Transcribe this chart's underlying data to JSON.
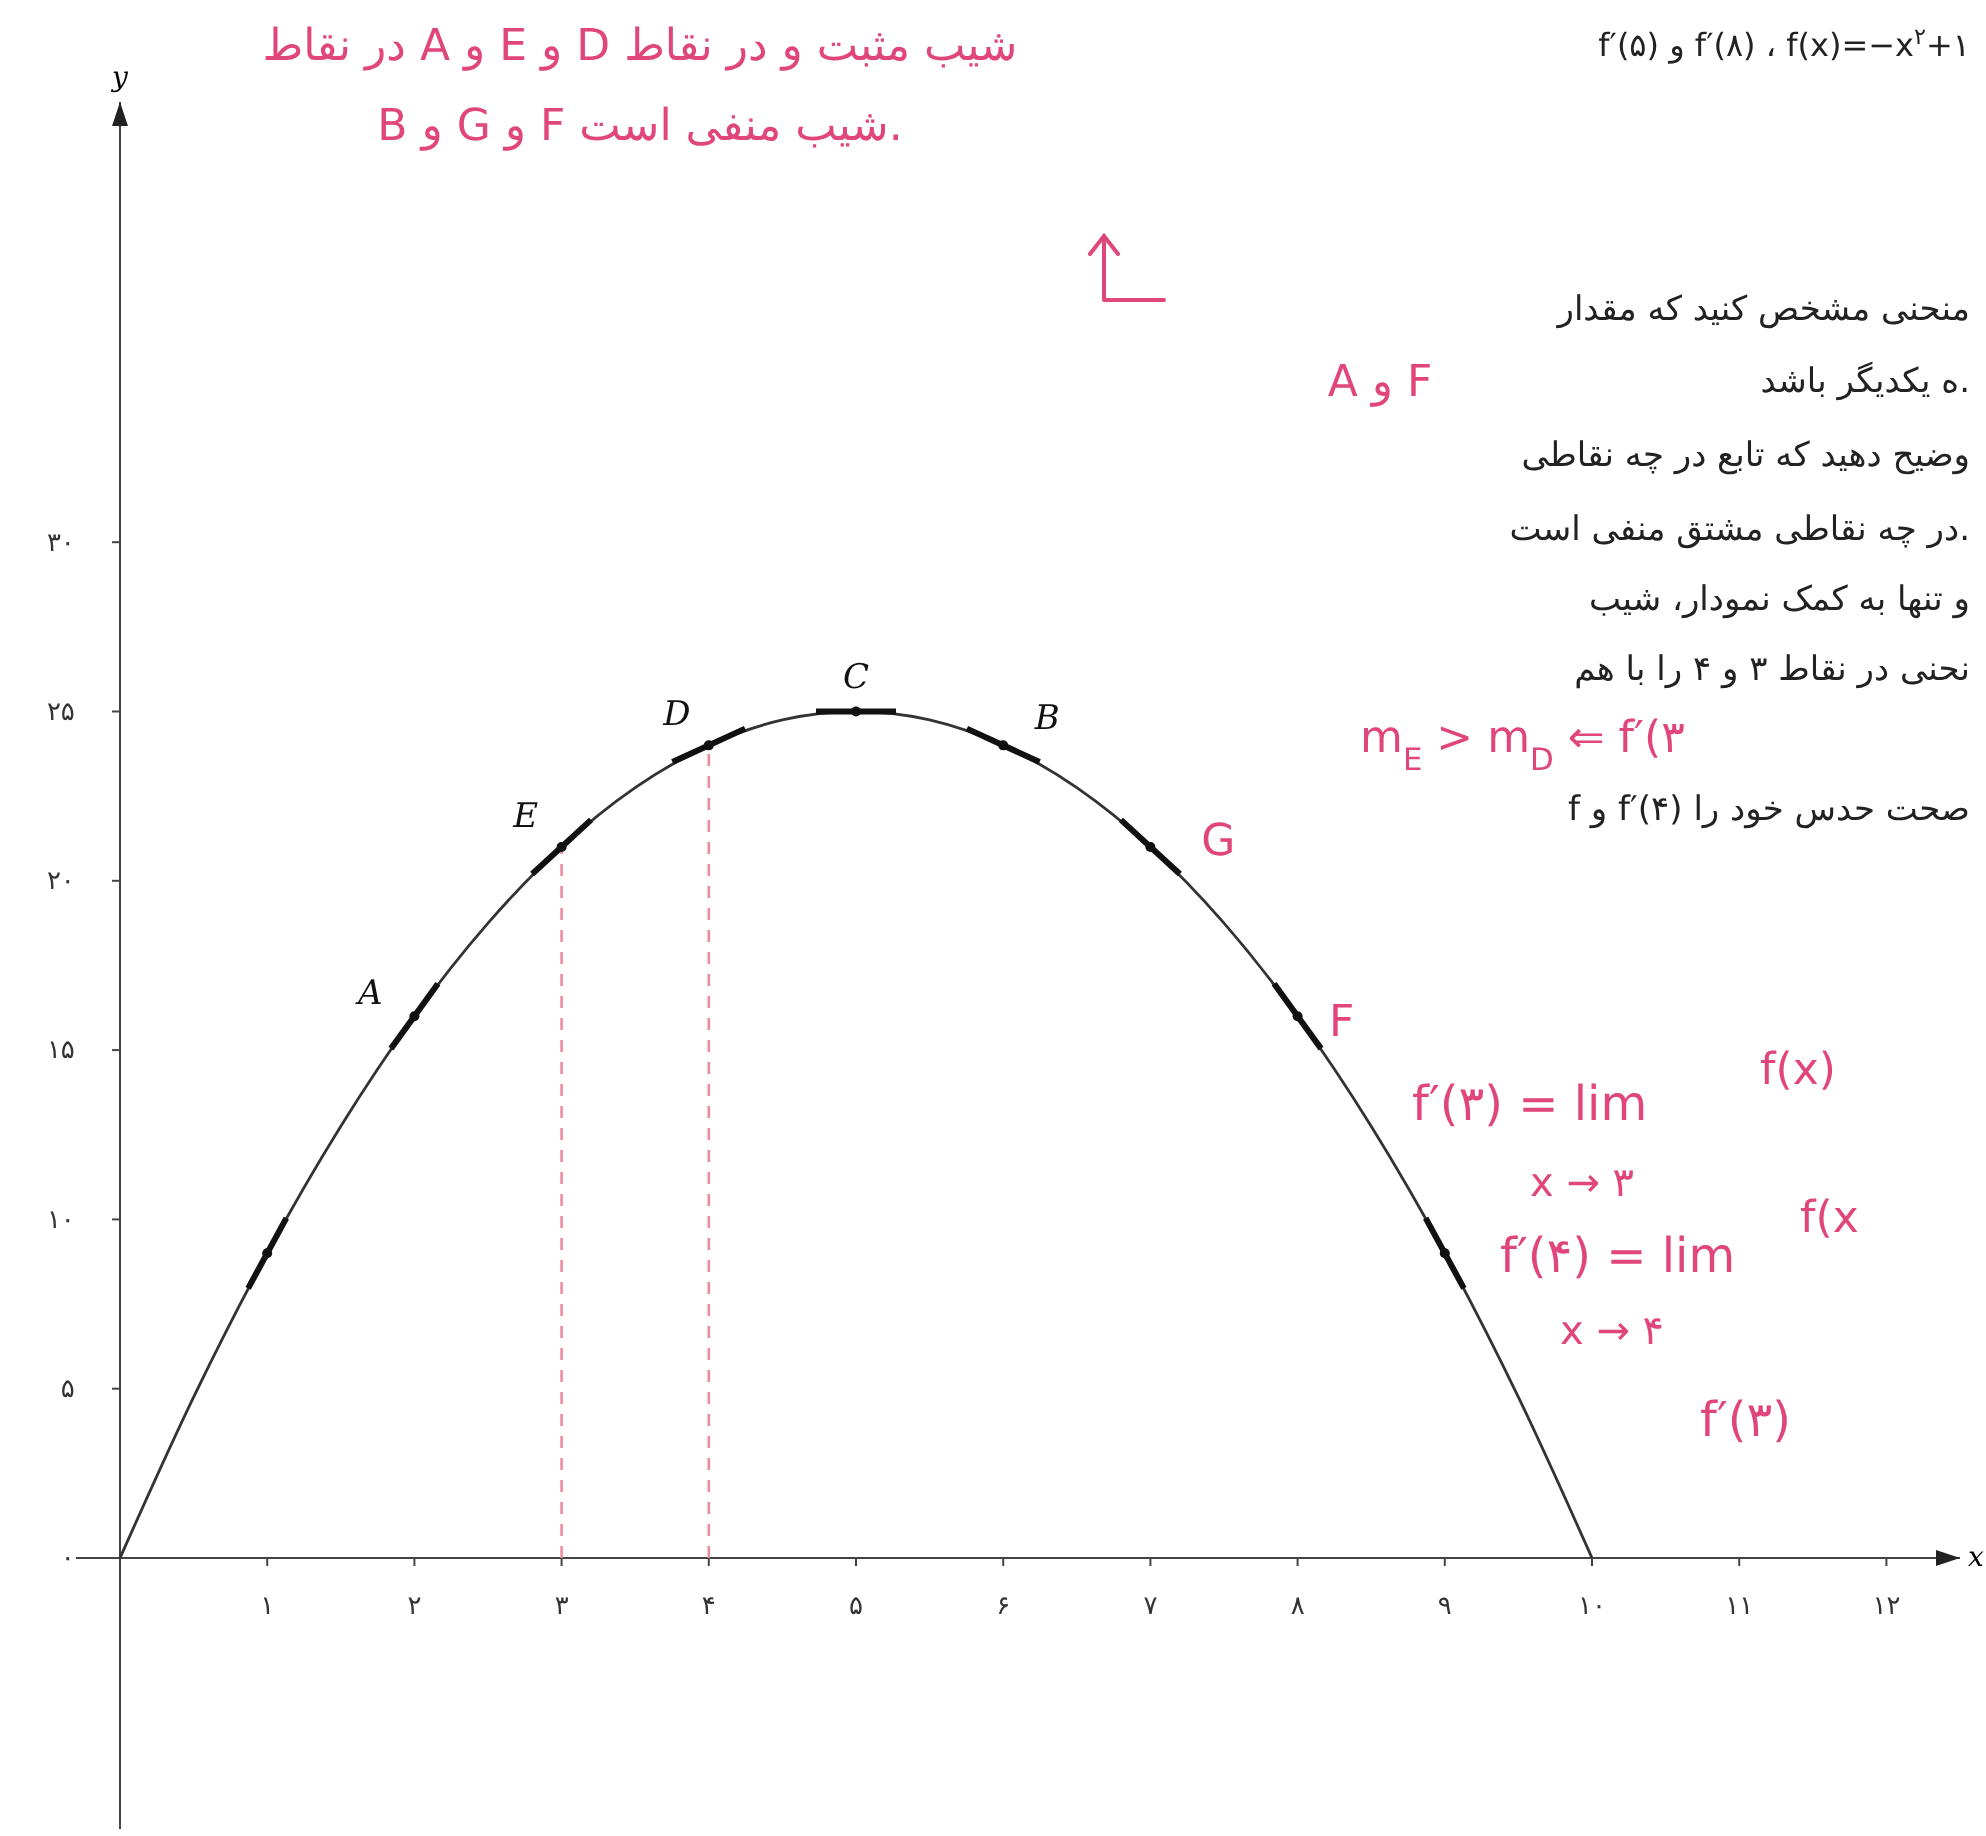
{
  "chart_data": {
    "type": "line",
    "xlabel": "x",
    "ylabel": "y",
    "xlim": [
      -0.3,
      12.5
    ],
    "ylim": [
      -8,
      43
    ],
    "xticks": [
      {
        "value": 1,
        "label": "۱"
      },
      {
        "value": 2,
        "label": "۲"
      },
      {
        "value": 3,
        "label": "۳"
      },
      {
        "value": 4,
        "label": "۴"
      },
      {
        "value": 5,
        "label": "۵"
      },
      {
        "value": 6,
        "label": "۶"
      },
      {
        "value": 7,
        "label": "۷"
      },
      {
        "value": 8,
        "label": "۸"
      },
      {
        "value": 9,
        "label": "۹"
      },
      {
        "value": 10,
        "label": "۱۰"
      },
      {
        "value": 11,
        "label": "۱۱"
      },
      {
        "value": 12,
        "label": "۱۲"
      }
    ],
    "yticks": [
      {
        "value": 0,
        "label": "۰"
      },
      {
        "value": 5,
        "label": "۵"
      },
      {
        "value": 10,
        "label": "۱۰"
      },
      {
        "value": 15,
        "label": "۱۵"
      },
      {
        "value": 20,
        "label": "۲۰"
      },
      {
        "value": 25,
        "label": "۲۵"
      },
      {
        "value": 30,
        "label": "۳۰"
      }
    ],
    "series": [
      {
        "color": "#333333",
        "x": [
          0,
          0.5,
          1,
          1.5,
          2,
          2.5,
          3,
          3.5,
          4,
          4.5,
          5,
          5.5,
          6,
          6.5,
          7,
          7.5,
          8,
          8.5,
          9,
          9.5,
          10
        ],
        "values": [
          0,
          4.75,
          9,
          12.75,
          16,
          18.75,
          21,
          22.75,
          24,
          24.75,
          25,
          24.75,
          24,
          22.75,
          21,
          18.75,
          16,
          12.75,
          9,
          4.75,
          0
        ]
      },
      {
        "type": "scatter",
        "color": "#111111",
        "x": [
          1,
          2,
          3,
          4,
          5,
          6,
          7,
          8,
          9
        ],
        "values": [
          9,
          16,
          21,
          24,
          25,
          24,
          21,
          16,
          9
        ]
      }
    ],
    "ref_lines": [
      {
        "axis": "x",
        "value": 3,
        "color": "#f08ca0",
        "line_style": "dashed"
      },
      {
        "axis": "x",
        "value": 4,
        "color": "#f08ca0",
        "line_style": "dashed"
      }
    ],
    "annotations": [
      {
        "text": "A",
        "x": 2,
        "y": 16
      },
      {
        "text": "B",
        "x": 6,
        "y": 24
      },
      {
        "text": "C",
        "x": 5,
        "y": 25
      },
      {
        "text": "D",
        "x": 4,
        "y": 24
      },
      {
        "text": "E",
        "x": 3,
        "y": 21
      },
      {
        "text": "G",
        "x": 7,
        "y": 21
      },
      {
        "text": "F",
        "x": 8,
        "y": 16
      },
      "در نقاط A و E و D شیب مثبت و در نقاط",
      "B و G و F شیب منفی است.",
      "f′(۵) و f′(۸) ، f(x)=−x$^{۲}$+۱",
      "منحنی مشخص کنید که مقدار",
      "ه یکدیگر باشد.",
      "A و F",
      "وضیح دهید که تابع در چه نقاطی",
      "در چه نقاطی مشتق منفی است.",
      "و تنها به کمک نمودار، شیب",
      "نحنی در نقاط ۳ و ۴ را با هم",
      "m$_{E}$ > m$_{D}$ ⇐ f′(۳",
      "f و f′(۴) صحت حدس خود را",
      "f′(۳) = lim",
      "f(x)",
      "x → ۳",
      "f′(۴) = lim",
      "f(x",
      "x → ۴",
      "f′(۳)"
    ]
  }
}
